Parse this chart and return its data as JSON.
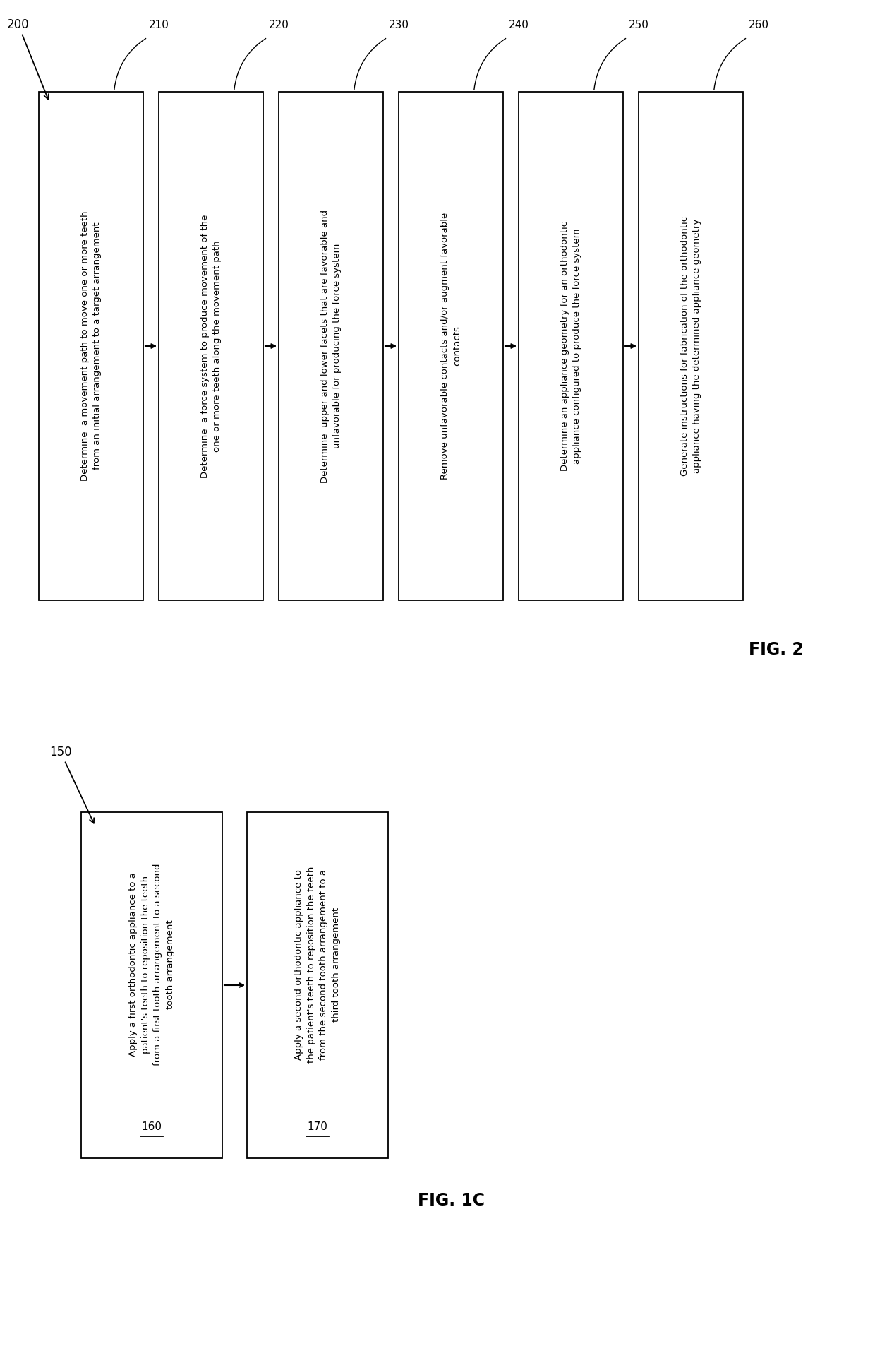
{
  "bg_color": "#ffffff",
  "fig2": {
    "title": "FIG. 2",
    "label": "200",
    "boxes": [
      {
        "label": "210",
        "text": "Determine  a movement path to move one or more teeth\nfrom an initial arrangement to a target arrangement"
      },
      {
        "label": "220",
        "text": "Determine  a force system to produce movement of the\none or more teeth along the movement path"
      },
      {
        "label": "230",
        "text": "Determine  upper and lower facets that are favorable and\nunfavorable for producing the force system"
      },
      {
        "label": "240",
        "text": "Remove unfavorable contacts and/or augment favorable\ncontacts"
      },
      {
        "label": "250",
        "text": "Determine an appliance geometry for an orthodontic\nappliance configured to produce the force system"
      },
      {
        "label": "260",
        "text": "Generate instructions for fabrication of the orthodontic\nappliance having the determined appliance geometry"
      }
    ]
  },
  "fig1c": {
    "title": "FIG. 1C",
    "label": "150",
    "boxes": [
      {
        "label": "160",
        "text": "Apply a first orthodontic appliance to a\npatient's teeth to reposition the teeth\nfrom a first tooth arrangement to a second\ntooth arrangement"
      },
      {
        "label": "170",
        "text": "Apply a second orthodontic appliance to\nthe patient's teeth to reposition the teeth\nfrom the second tooth arrangement to a\nthird tooth arrangement"
      }
    ]
  }
}
